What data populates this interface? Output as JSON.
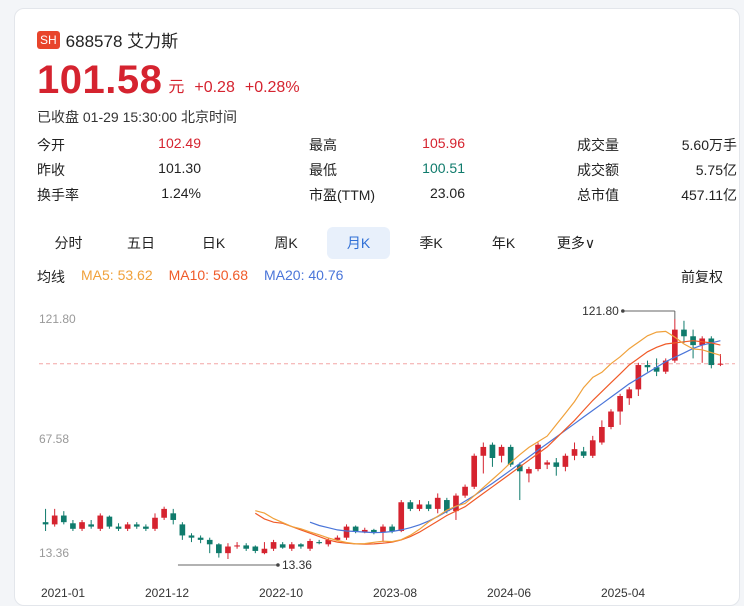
{
  "header": {
    "exchange_badge": "SH",
    "code_name": "688578 艾力斯"
  },
  "quote": {
    "price": "101.58",
    "unit": "元",
    "change": "+0.28",
    "change_pct": "+0.28%",
    "status": "已收盘 01-29 15:30:00 北京时间"
  },
  "stats": [
    [
      {
        "label": "今开",
        "value": "102.49",
        "color": "red"
      },
      {
        "label": "最高",
        "value": "105.96",
        "color": "red"
      },
      {
        "label": "成交量",
        "value": "5.60万手",
        "color": "normal"
      }
    ],
    [
      {
        "label": "昨收",
        "value": "101.30",
        "color": "normal"
      },
      {
        "label": "最低",
        "value": "100.51",
        "color": "green"
      },
      {
        "label": "成交额",
        "value": "5.75亿",
        "color": "normal"
      }
    ],
    [
      {
        "label": "换手率",
        "value": "1.24%",
        "color": "normal"
      },
      {
        "label": "市盈(TTM)",
        "value": "23.06",
        "color": "normal"
      },
      {
        "label": "总市值",
        "value": "457.11亿",
        "color": "normal"
      }
    ]
  ],
  "tabs": [
    {
      "label": "分时",
      "active": false
    },
    {
      "label": "五日",
      "active": false
    },
    {
      "label": "日K",
      "active": false
    },
    {
      "label": "周K",
      "active": false
    },
    {
      "label": "月K",
      "active": true
    },
    {
      "label": "季K",
      "active": false
    },
    {
      "label": "年K",
      "active": false
    },
    {
      "label": "更多",
      "active": false
    }
  ],
  "ma": {
    "title": "均线",
    "ma5": "MA5: 53.62",
    "ma10": "MA10: 50.68",
    "ma20": "MA20: 40.76",
    "adjust": "前复权"
  },
  "colors": {
    "up": "#d5232f",
    "down": "#0f7b6c",
    "ma5": "#f0a13b",
    "ma10": "#f05a28",
    "ma20": "#4a75d9"
  },
  "chart_data": {
    "type": "candlestick",
    "y_ticks": [
      "121.80",
      "67.58",
      "13.36"
    ],
    "x_ticks": [
      "2021-01",
      "2021-12",
      "2022-10",
      "2023-08",
      "2024-06",
      "2025-04"
    ],
    "max_label": "121.80",
    "min_label": "13.36",
    "current_price": 101.58,
    "ylim": [
      13.36,
      121.8
    ],
    "candles": [
      [
        30.0,
        29.0,
        36.0,
        26.0
      ],
      [
        29.0,
        33.0,
        36.0,
        28.0
      ],
      [
        33.0,
        30.0,
        35.0,
        29.0
      ],
      [
        29.5,
        27.0,
        31.0,
        26.0
      ],
      [
        27.0,
        30.0,
        31.0,
        26.0
      ],
      [
        29.0,
        28.0,
        31.0,
        27.0
      ],
      [
        27.0,
        33.0,
        34.0,
        26.0
      ],
      [
        32.5,
        28.0,
        33.0,
        27.0
      ],
      [
        28.0,
        27.0,
        29.5,
        26.0
      ],
      [
        27.0,
        29.0,
        30.0,
        26.0
      ],
      [
        29.0,
        28.0,
        30.0,
        27.0
      ],
      [
        28.0,
        27.0,
        29.0,
        26.0
      ],
      [
        27.0,
        32.0,
        34.0,
        26.0
      ],
      [
        32.0,
        36.0,
        37.0,
        31.0
      ],
      [
        34.0,
        31.0,
        36.0,
        29.0
      ],
      [
        29.0,
        24.0,
        30.0,
        22.0
      ],
      [
        24.0,
        23.0,
        25.0,
        21.0
      ],
      [
        23.0,
        22.0,
        24.0,
        20.5
      ],
      [
        22.0,
        20.0,
        23.0,
        16.0
      ],
      [
        20.0,
        16.0,
        20.5,
        14.0
      ],
      [
        16.0,
        19.0,
        20.5,
        13.36
      ],
      [
        19.0,
        19.5,
        21.0,
        18.0
      ],
      [
        19.5,
        18.0,
        20.5,
        17.0
      ],
      [
        19.0,
        17.0,
        19.5,
        16.0
      ],
      [
        16.0,
        18.0,
        21.0,
        15.5
      ],
      [
        18.0,
        21.0,
        22.0,
        17.0
      ],
      [
        20.0,
        18.5,
        21.0,
        18.0
      ],
      [
        18.0,
        20.0,
        21.0,
        17.0
      ],
      [
        20.0,
        19.0,
        20.5,
        18.0
      ],
      [
        18.0,
        21.5,
        22.5,
        17.0
      ],
      [
        21.0,
        20.5,
        22.0,
        20.0
      ],
      [
        20.0,
        22.0,
        23.0,
        19.0
      ],
      [
        22.0,
        23.0,
        24.0,
        22.0
      ],
      [
        23.0,
        28.0,
        29.0,
        22.0
      ],
      [
        28.0,
        26.0,
        28.5,
        25.0
      ],
      [
        25.5,
        26.5,
        27.5,
        25.0
      ],
      [
        26.5,
        25.5,
        27.0,
        24.5
      ],
      [
        25.5,
        28.0,
        29.0,
        21.0
      ],
      [
        28.0,
        26.0,
        29.0,
        25.0
      ],
      [
        26.0,
        39.0,
        40.0,
        25.5
      ],
      [
        39.0,
        36.0,
        40.0,
        35.0
      ],
      [
        36.0,
        38.0,
        40.0,
        35.0
      ],
      [
        38.0,
        36.0,
        39.5,
        35.0
      ],
      [
        36.0,
        41.0,
        43.0,
        34.0
      ],
      [
        40.0,
        35.0,
        41.0,
        34.0
      ],
      [
        35.0,
        42.0,
        43.0,
        31.0
      ],
      [
        42.0,
        46.0,
        47.0,
        41.0
      ],
      [
        46.0,
        60.0,
        61.0,
        45.0
      ],
      [
        60.0,
        64.0,
        66.0,
        52.0
      ],
      [
        65.0,
        59.0,
        66.0,
        55.0
      ],
      [
        60.0,
        64.0,
        65.0,
        57.0
      ],
      [
        64.0,
        56.0,
        65.0,
        55.0
      ],
      [
        56.0,
        53.0,
        57.0,
        40.0
      ],
      [
        52.0,
        54.0,
        55.0,
        48.0
      ],
      [
        54.0,
        65.0,
        66.0,
        53.0
      ],
      [
        56.0,
        57.0,
        58.0,
        54.0
      ],
      [
        57.0,
        55.0,
        59.0,
        51.0
      ],
      [
        55.0,
        60.0,
        61.0,
        53.0
      ],
      [
        60.0,
        63.0,
        66.0,
        58.0
      ],
      [
        62.0,
        60.0,
        64.0,
        59.0
      ],
      [
        60.0,
        67.0,
        69.0,
        59.0
      ],
      [
        66.0,
        73.0,
        76.0,
        65.0
      ],
      [
        73.0,
        80.0,
        81.0,
        72.0
      ],
      [
        80.0,
        87.0,
        88.0,
        74.0
      ],
      [
        86.0,
        90.0,
        91.0,
        83.0
      ],
      [
        90.0,
        101.0,
        102.0,
        87.0
      ],
      [
        101.0,
        100.0,
        103.0,
        98.0
      ],
      [
        100.0,
        98.0,
        104.0,
        96.0
      ],
      [
        98.0,
        103.0,
        104.0,
        97.0
      ],
      [
        103.0,
        117.0,
        121.8,
        102.0
      ],
      [
        117.0,
        114.0,
        121.0,
        111.0
      ],
      [
        114.0,
        110.0,
        117.0,
        104.0
      ],
      [
        110.0,
        113.0,
        114.0,
        102.0
      ],
      [
        113.0,
        101.0,
        114.0,
        99.5
      ],
      [
        101.3,
        101.58,
        105.96,
        100.51
      ]
    ],
    "ma5_series": [
      35.2,
      34.1,
      31.6,
      29.8,
      28.0,
      27.0,
      25.6,
      24.3,
      22.9,
      21.7,
      20.8,
      20.2,
      20.3,
      20.9,
      21.4,
      21.2,
      22.1,
      24.1,
      26.8,
      30.1,
      32.7,
      35.4,
      37.2,
      38.5,
      41.9,
      45.6,
      49.3,
      53.0,
      56.9,
      60.5,
      63.8,
      66.3,
      68.9,
      74.1,
      79.2,
      84.5,
      90.8,
      95.4,
      97.7,
      101.6,
      104.7,
      108.4,
      111.3,
      114.2,
      115.9,
      116.2,
      113.6,
      110.5,
      108.3,
      107.9,
      106.6,
      105.4
    ],
    "ma10_series": [
      34.0,
      31.5,
      30.0,
      29.5,
      28.0,
      26.5,
      25.0,
      23.5,
      22.0,
      21.0,
      20.5,
      20.2,
      20.1,
      20.2,
      20.5,
      21.0,
      22.0,
      23.5,
      25.5,
      28.0,
      30.5,
      33.0,
      35.0,
      37.0,
      40.0,
      43.0,
      46.0,
      49.0,
      52.0,
      55.0,
      58.0,
      61.0,
      64.0,
      68.0,
      72.0,
      76.0,
      80.5,
      85.0,
      89.0,
      93.0,
      97.0,
      101.0,
      104.0,
      107.0,
      109.0,
      110.5,
      111.0,
      111.5,
      112.0,
      111.5,
      111.0,
      110.0
    ],
    "ma20_series": [
      30.0,
      28.5,
      27.5,
      26.5,
      26.0,
      25.8,
      25.5,
      25.3,
      25.4,
      25.8,
      26.5,
      27.5,
      28.8,
      30.5,
      32.5,
      34.8,
      37.0,
      39.5,
      42.0,
      44.8,
      47.5,
      50.5,
      53.5,
      56.5,
      59.5,
      62.5,
      65.5,
      68.5,
      71.5,
      74.5,
      77.5,
      80.5,
      83.5,
      86.5,
      89.5,
      92.5,
      95.0,
      97.5,
      100.0,
      102.5,
      104.5,
      106.5,
      108.5,
      110.0,
      111.0,
      112.0
    ]
  }
}
